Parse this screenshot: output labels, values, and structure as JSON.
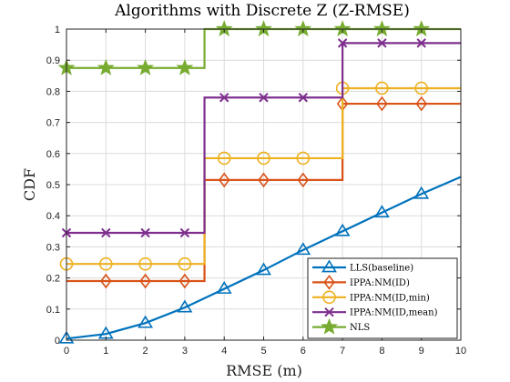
{
  "chart_data": {
    "type": "line",
    "title": "Algorithms with Discrete Z (Z-RMSE)",
    "xlabel": "RMSE (m)",
    "ylabel": "CDF",
    "xlim": [
      0,
      10
    ],
    "ylim": [
      0,
      1
    ],
    "x_ticks": [
      "0",
      "1",
      "2",
      "3",
      "4",
      "5",
      "6",
      "7",
      "8",
      "9",
      "10"
    ],
    "y_ticks": [
      "0",
      "0.1",
      "0.2",
      "0.3",
      "0.4",
      "0.5",
      "0.6",
      "0.7",
      "0.8",
      "0.9",
      "1"
    ],
    "grid": true,
    "legend_position": "bottom-right",
    "series": [
      {
        "name": "LLS(baseline)",
        "color": "#0072BD",
        "marker": "triangle",
        "step": false,
        "x": [
          0,
          1,
          2,
          3,
          4,
          5,
          6,
          7,
          8,
          9,
          10
        ],
        "y": [
          0.005,
          0.02,
          0.055,
          0.105,
          0.165,
          0.225,
          0.29,
          0.35,
          0.41,
          0.47,
          0.525
        ],
        "marker_x": [
          0,
          1,
          2,
          3,
          4,
          5,
          6,
          7,
          8,
          9
        ]
      },
      {
        "name": "IPPA:NM(ID)",
        "color": "#D95319",
        "marker": "diamond",
        "step": true,
        "x": [
          0,
          3.5,
          7,
          10
        ],
        "y": [
          0.19,
          0.515,
          0.76,
          0.76
        ],
        "marker_x": [
          1,
          2,
          3,
          4,
          5,
          6,
          7,
          8,
          9
        ],
        "marker_x_start": 0
      },
      {
        "name": "IPPA:NM(ID,min)",
        "color": "#EDB120",
        "marker": "circle",
        "step": true,
        "x": [
          0,
          3.5,
          7,
          10
        ],
        "y": [
          0.245,
          0.585,
          0.81,
          0.81
        ],
        "marker_x": [
          0,
          1,
          2,
          3,
          4,
          5,
          6,
          7,
          8,
          9
        ]
      },
      {
        "name": "IPPA:NM(ID,mean)",
        "color": "#7E2F8E",
        "marker": "x",
        "step": true,
        "x": [
          0,
          3.5,
          7,
          10
        ],
        "y": [
          0.345,
          0.78,
          0.955,
          0.955
        ],
        "marker_x": [
          0,
          1,
          2,
          3,
          4,
          5,
          6,
          7,
          8,
          9
        ]
      },
      {
        "name": "NLS",
        "color": "#77AC30",
        "marker": "star",
        "step": true,
        "x": [
          0,
          3.5,
          10
        ],
        "y": [
          0.875,
          1.0,
          1.0
        ],
        "marker_x": [
          0,
          1,
          2,
          3,
          4,
          5,
          6,
          7,
          8,
          9
        ]
      }
    ]
  }
}
